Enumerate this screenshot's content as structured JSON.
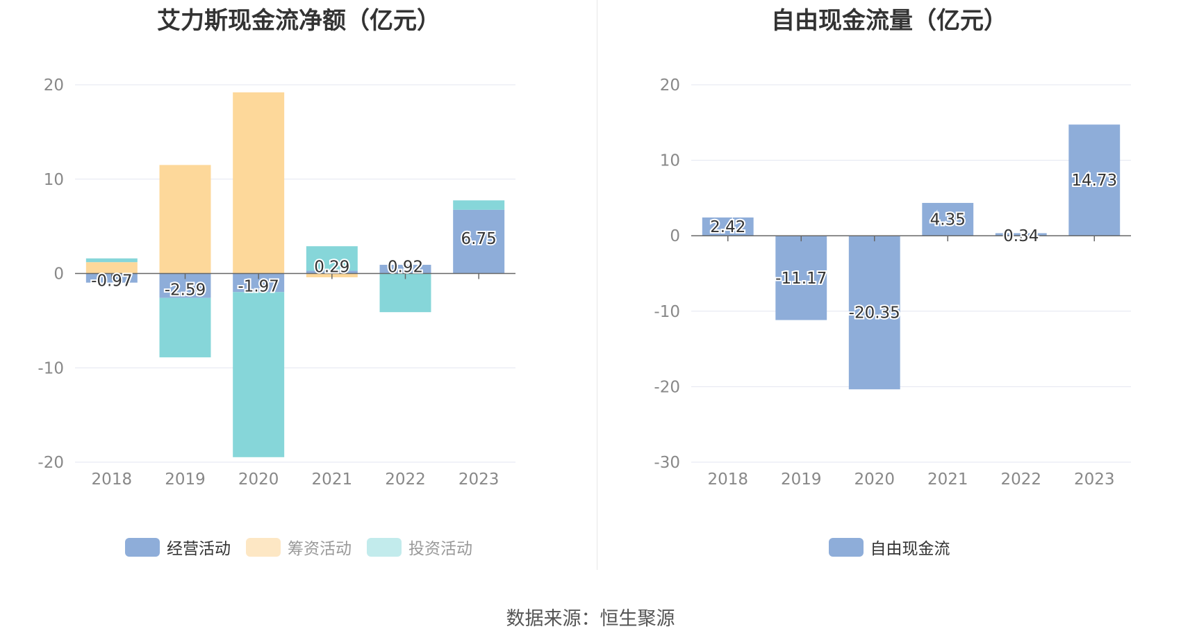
{
  "source": "数据来源：恒生聚源",
  "colors": {
    "operating": "#8eadd9",
    "financing": "#fdd89a",
    "investing": "#86d6d9",
    "fcf": "#8eadd9"
  },
  "chart_data": [
    {
      "type": "bar",
      "stacked": true,
      "title": "艾力斯现金流净额（亿元）",
      "categories": [
        "2018",
        "2019",
        "2020",
        "2021",
        "2022",
        "2023"
      ],
      "ylim": [
        -20,
        20
      ],
      "yticks": [
        "20",
        "10",
        "0",
        "-10",
        "-20"
      ],
      "ytick_values": [
        20,
        10,
        0,
        -10,
        -20
      ],
      "grid": true,
      "legend_position": "bottom",
      "series": [
        {
          "name": "经营活动",
          "values": [
            -0.97,
            -2.59,
            -1.97,
            0.29,
            0.92,
            6.75
          ],
          "labels": [
            "-0.97",
            "-2.59",
            "-1.97",
            "0.29",
            "0.92",
            "6.75"
          ]
        },
        {
          "name": "筹资活动",
          "values": [
            1.2,
            11.5,
            19.2,
            -0.4,
            0,
            0
          ]
        },
        {
          "name": "投资活动",
          "values": [
            0.4,
            -6.3,
            -17.5,
            2.6,
            -4.1,
            1.0
          ]
        }
      ]
    },
    {
      "type": "bar",
      "title": "自由现金流量（亿元）",
      "categories": [
        "2018",
        "2019",
        "2020",
        "2021",
        "2022",
        "2023"
      ],
      "ylim": [
        -30,
        20
      ],
      "yticks": [
        "20",
        "10",
        "0",
        "-10",
        "-20",
        "-30"
      ],
      "ytick_values": [
        20,
        10,
        0,
        -10,
        -20,
        -30
      ],
      "grid": true,
      "legend_position": "bottom",
      "series": [
        {
          "name": "自由现金流",
          "values": [
            2.42,
            -11.17,
            -20.35,
            4.35,
            0.34,
            14.73
          ],
          "labels": [
            "2.42",
            "-11.17",
            "-20.35",
            "4.35",
            "0.34",
            "14.73"
          ]
        }
      ]
    }
  ]
}
